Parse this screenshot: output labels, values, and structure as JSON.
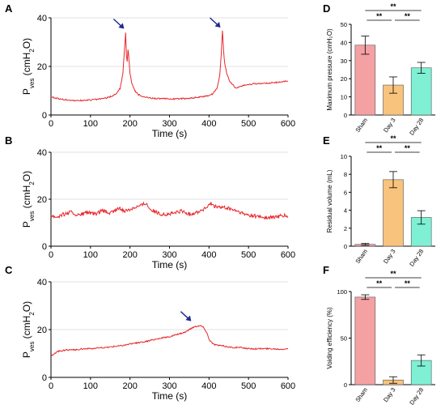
{
  "panels": {
    "A": "A",
    "B": "B",
    "C": "C",
    "D": "D",
    "E": "E",
    "F": "F"
  },
  "colors": {
    "trace": "#e8262b",
    "arrow": "#1f2b8c",
    "grid": "#d9d9d9",
    "sham": "#f4a1a3",
    "day3": "#f8c37c",
    "day28": "#7ff0d4",
    "error": "#000000"
  },
  "chart_data": [
    {
      "id": "A",
      "type": "line",
      "xlabel": "Time (s)",
      "ylabel_main": "P",
      "ylabel_sub": "ves",
      "ylabel_unit": "(cmH",
      "ylabel_sub2": "2",
      "ylabel_end": "O)",
      "xlim": [
        0,
        600
      ],
      "ylim": [
        0,
        40
      ],
      "xticks": [
        0,
        100,
        200,
        300,
        400,
        500,
        600
      ],
      "yticks": [
        0,
        20,
        40
      ],
      "grid": true,
      "series": [
        {
          "values": [
            [
              0,
              7.6
            ],
            [
              10,
              7
            ],
            [
              20,
              6.7
            ],
            [
              40,
              6.2
            ],
            [
              60,
              5.9
            ],
            [
              80,
              6
            ],
            [
              100,
              6.2
            ],
            [
              120,
              6.5
            ],
            [
              140,
              7
            ],
            [
              155,
              7.8
            ],
            [
              165,
              8.8
            ],
            [
              175,
              11
            ],
            [
              182,
              17
            ],
            [
              186,
              27
            ],
            [
              189,
              34
            ],
            [
              191,
              24
            ],
            [
              193,
              22
            ],
            [
              195,
              27
            ],
            [
              197,
              24
            ],
            [
              200,
              17
            ],
            [
              205,
              13
            ],
            [
              212,
              10
            ],
            [
              220,
              8.5
            ],
            [
              232,
              7.5
            ],
            [
              250,
              7
            ],
            [
              280,
              6.7
            ],
            [
              310,
              6.6
            ],
            [
              340,
              6.8
            ],
            [
              370,
              7.2
            ],
            [
              395,
              7.8
            ],
            [
              410,
              8.8
            ],
            [
              420,
              11
            ],
            [
              427,
              16
            ],
            [
              431,
              25
            ],
            [
              434,
              35
            ],
            [
              437,
              26
            ],
            [
              440,
              21
            ],
            [
              445,
              17
            ],
            [
              452,
              14
            ],
            [
              460,
              12.5
            ],
            [
              465,
              11.5
            ],
            [
              470,
              11
            ],
            [
              475,
              11.5
            ],
            [
              480,
              11.8
            ],
            [
              490,
              12.3
            ],
            [
              510,
              12.8
            ],
            [
              540,
              13
            ],
            [
              570,
              13.4
            ],
            [
              600,
              14
            ]
          ]
        }
      ],
      "arrows_at": [
        [
          185,
          35.5
        ],
        [
          429,
          36
        ]
      ]
    },
    {
      "id": "B",
      "type": "line",
      "xlabel": "Time (s)",
      "ylabel_main": "P",
      "ylabel_sub": "ves",
      "ylabel_unit": "(cmH",
      "ylabel_sub2": "2",
      "ylabel_end": "O)",
      "xlim": [
        0,
        600
      ],
      "ylim": [
        0,
        40
      ],
      "xticks": [
        0,
        100,
        200,
        300,
        400,
        500,
        600
      ],
      "yticks": [
        0,
        20,
        40
      ],
      "grid": true,
      "series": [
        {
          "values": [
            [
              0,
              13
            ],
            [
              15,
              12.5
            ],
            [
              30,
              13.5
            ],
            [
              50,
              14.5
            ],
            [
              70,
              13
            ],
            [
              90,
              14.5
            ],
            [
              110,
              13.5
            ],
            [
              130,
              15
            ],
            [
              150,
              14
            ],
            [
              170,
              16
            ],
            [
              190,
              15
            ],
            [
              210,
              16.5
            ],
            [
              230,
              17.5
            ],
            [
              240,
              18.5
            ],
            [
              250,
              16
            ],
            [
              270,
              14
            ],
            [
              290,
              13.5
            ],
            [
              310,
              14
            ],
            [
              330,
              15
            ],
            [
              350,
              13.5
            ],
            [
              370,
              14.5
            ],
            [
              390,
              16
            ],
            [
              405,
              18
            ],
            [
              415,
              17
            ],
            [
              430,
              16.5
            ],
            [
              450,
              16
            ],
            [
              470,
              15
            ],
            [
              490,
              13.5
            ],
            [
              510,
              13
            ],
            [
              530,
              12.5
            ],
            [
              550,
              12
            ],
            [
              570,
              12.5
            ],
            [
              590,
              13
            ],
            [
              600,
              12.5
            ]
          ]
        }
      ]
    },
    {
      "id": "C",
      "type": "line",
      "xlabel": "Time (s)",
      "ylabel_main": "P",
      "ylabel_sub": "ves",
      "ylabel_unit": "(cmH",
      "ylabel_sub2": "2",
      "ylabel_end": "O)",
      "xlim": [
        0,
        600
      ],
      "ylim": [
        0,
        40
      ],
      "xticks": [
        0,
        100,
        200,
        300,
        400,
        500,
        600
      ],
      "yticks": [
        0,
        20,
        40
      ],
      "grid": true,
      "series": [
        {
          "values": [
            [
              0,
              9
            ],
            [
              10,
              10
            ],
            [
              20,
              11
            ],
            [
              40,
              11.5
            ],
            [
              60,
              11.5
            ],
            [
              80,
              12
            ],
            [
              100,
              12
            ],
            [
              120,
              12.3
            ],
            [
              140,
              12.5
            ],
            [
              160,
              13
            ],
            [
              180,
              13.3
            ],
            [
              200,
              14
            ],
            [
              220,
              14.5
            ],
            [
              240,
              15
            ],
            [
              260,
              15.8
            ],
            [
              280,
              16.5
            ],
            [
              300,
              17
            ],
            [
              320,
              18
            ],
            [
              340,
              19
            ],
            [
              350,
              20
            ],
            [
              360,
              21
            ],
            [
              370,
              21.5
            ],
            [
              380,
              21.6
            ],
            [
              385,
              21
            ],
            [
              390,
              20
            ],
            [
              395,
              18.5
            ],
            [
              400,
              16
            ],
            [
              410,
              14
            ],
            [
              420,
              13.5
            ],
            [
              440,
              13
            ],
            [
              460,
              12.5
            ],
            [
              480,
              12.5
            ],
            [
              500,
              12
            ],
            [
              520,
              12
            ],
            [
              540,
              12
            ],
            [
              560,
              12
            ],
            [
              580,
              11.8
            ],
            [
              600,
              12
            ]
          ]
        }
      ],
      "arrows_at": [
        [
          355,
          23.5
        ]
      ]
    },
    {
      "id": "D",
      "type": "bar",
      "ylabel": "Maximum pressure (cmH₂O)",
      "categories": [
        "Sham",
        "Day 3",
        "Day 28"
      ],
      "values": [
        38.5,
        16.5,
        26
      ],
      "errors": [
        5,
        4.5,
        3
      ],
      "ylim": [
        0,
        50
      ],
      "yticks": [
        0,
        10,
        20,
        30,
        40,
        50
      ],
      "significance": [
        {
          "pair": [
            0,
            1
          ],
          "label": "**"
        },
        {
          "pair": [
            1,
            2
          ],
          "label": "**"
        },
        {
          "pair": [
            0,
            2
          ],
          "label": "**"
        }
      ]
    },
    {
      "id": "E",
      "type": "bar",
      "ylabel": "Residual volume (mL)",
      "categories": [
        "Sham",
        "Day 3",
        "Day 28"
      ],
      "values": [
        0.2,
        7.4,
        3.2
      ],
      "errors": [
        0.1,
        0.9,
        0.75
      ],
      "ylim": [
        0,
        10
      ],
      "yticks": [
        0,
        2,
        4,
        6,
        8,
        10
      ],
      "significance": [
        {
          "pair": [
            0,
            1
          ],
          "label": "**"
        },
        {
          "pair": [
            1,
            2
          ],
          "label": "**"
        },
        {
          "pair": [
            0,
            2
          ],
          "label": "**"
        }
      ]
    },
    {
      "id": "F",
      "type": "bar",
      "ylabel": "Voiding efficiency (%)",
      "categories": [
        "Sham",
        "Day 3",
        "Day 28"
      ],
      "values": [
        94,
        5,
        26
      ],
      "errors": [
        2.5,
        3.5,
        6
      ],
      "ylim": [
        0,
        100
      ],
      "yticks": [
        0,
        50,
        100
      ],
      "significance": [
        {
          "pair": [
            0,
            1
          ],
          "label": "**"
        },
        {
          "pair": [
            1,
            2
          ],
          "label": "**"
        },
        {
          "pair": [
            0,
            2
          ],
          "label": "**"
        }
      ]
    }
  ]
}
